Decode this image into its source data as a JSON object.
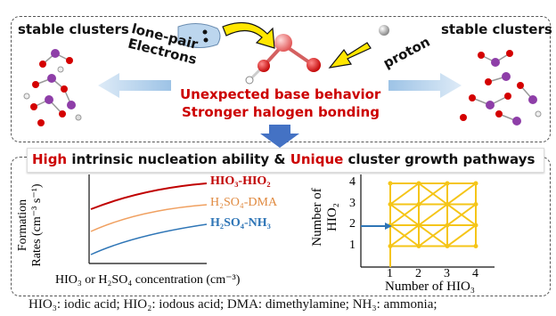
{
  "top": {
    "stable_left": "stable clusters",
    "stable_right": "stable clusters",
    "lone_pair_line1": "lone-pair",
    "lone_pair_line2": "Electrons",
    "proton": "proton",
    "red_line1": "Unexpected base behavior",
    "red_line2": "Stronger halogen bonding"
  },
  "headline": {
    "part1": "High",
    "part2": " intrinsic nucleation ability & ",
    "part3": "Unique",
    "part4": " cluster growth pathways"
  },
  "left_chart": {
    "y_label_line1": "Formation",
    "y_label_line2": "Rates (cm⁻³ s⁻¹)",
    "x_label": "HIO₃ or H₂SO₄ concentration (cm⁻³)",
    "series": [
      {
        "name": "HIO₃-HIO₂",
        "color": "#c00000"
      },
      {
        "name": "H₂SO₄-DMA",
        "color": "#f0a060"
      },
      {
        "name": "H₂SO₄-NH₃",
        "color": "#2e75b6"
      }
    ]
  },
  "right_chart": {
    "y_label_line1": "Number of",
    "y_label_line2": "HIO₂",
    "x_label": "Number of HIO₃",
    "x_ticks": [
      "1",
      "2",
      "3",
      "4"
    ],
    "y_ticks": [
      "1",
      "2",
      "3",
      "4"
    ]
  },
  "footer": "HIO₃: iodic acid; HIO₂: iodous acid; DMA: dimethylamine; NH₃: ammonia;",
  "colors": {
    "accent_red": "#cc0000",
    "arrow_blue": "#4472c4",
    "grid_yellow": "#f5c518"
  }
}
